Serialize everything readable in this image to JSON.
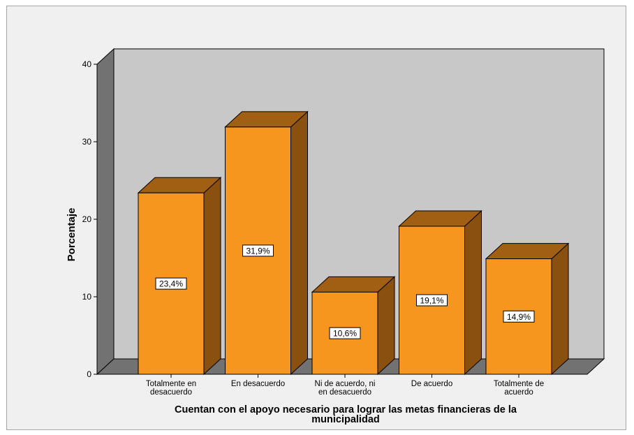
{
  "chart_data": {
    "type": "bar",
    "categories": [
      [
        "Totalmente en",
        "desacuerdo"
      ],
      [
        "En desacuerdo"
      ],
      [
        "Ni de acuerdo, ni",
        "en desacuerdo"
      ],
      [
        "De acuerdo"
      ],
      [
        "Totalmente de",
        "acuerdo"
      ]
    ],
    "values": [
      23.4,
      31.9,
      10.6,
      19.1,
      14.9
    ],
    "data_labels": [
      "23,4%",
      "31,9%",
      "10,6%",
      "19,1%",
      "14,9%"
    ],
    "ylabel": "Porcentaje",
    "xlabel_lines": [
      "Cuentan con el apoyo necesario para lograr las metas financieras de la",
      "municipalidad"
    ],
    "ylim": [
      0,
      40
    ],
    "yticks": [
      "0",
      "10",
      "20",
      "30",
      "40"
    ],
    "grid": false,
    "style": "3d",
    "colors": {
      "bar_front": "#f7961e",
      "bar_top": "#a15f13",
      "bar_side": "#8a5010",
      "plot_back": "#c8c8c8",
      "side_wall": "#727272",
      "floor": "#727272",
      "frame_background": "#f0f0f0"
    }
  }
}
